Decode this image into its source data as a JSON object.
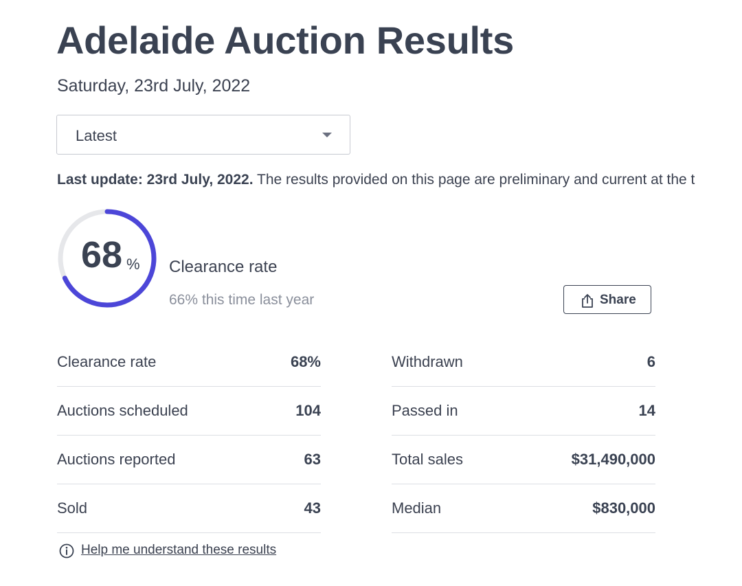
{
  "page": {
    "title": "Adelaide Auction Results",
    "date": "Saturday, 23rd July, 2022"
  },
  "filter": {
    "selected": "Latest"
  },
  "update": {
    "label": "Last update: 23rd July, 2022.",
    "text": " The results provided on this page are preliminary and current at the t"
  },
  "clearance": {
    "value": "68",
    "unit": "%",
    "fraction": 0.68,
    "label": "Clearance rate",
    "comparison": "66% this time last year",
    "accent_color": "#4c46d8",
    "track_color": "#e6e7ea"
  },
  "share": {
    "label": "Share",
    "icon": "share-icon"
  },
  "stats_left": [
    {
      "label": "Clearance rate",
      "value": "68%"
    },
    {
      "label": "Auctions scheduled",
      "value": "104"
    },
    {
      "label": "Auctions reported",
      "value": "63"
    },
    {
      "label": "Sold",
      "value": "43"
    }
  ],
  "stats_right": [
    {
      "label": "Withdrawn",
      "value": "6"
    },
    {
      "label": "Passed in",
      "value": "14"
    },
    {
      "label": "Total sales",
      "value": "$31,490,000"
    },
    {
      "label": "Median",
      "value": "$830,000"
    }
  ],
  "help": {
    "label": "Help me understand these results",
    "icon": "info-icon"
  }
}
